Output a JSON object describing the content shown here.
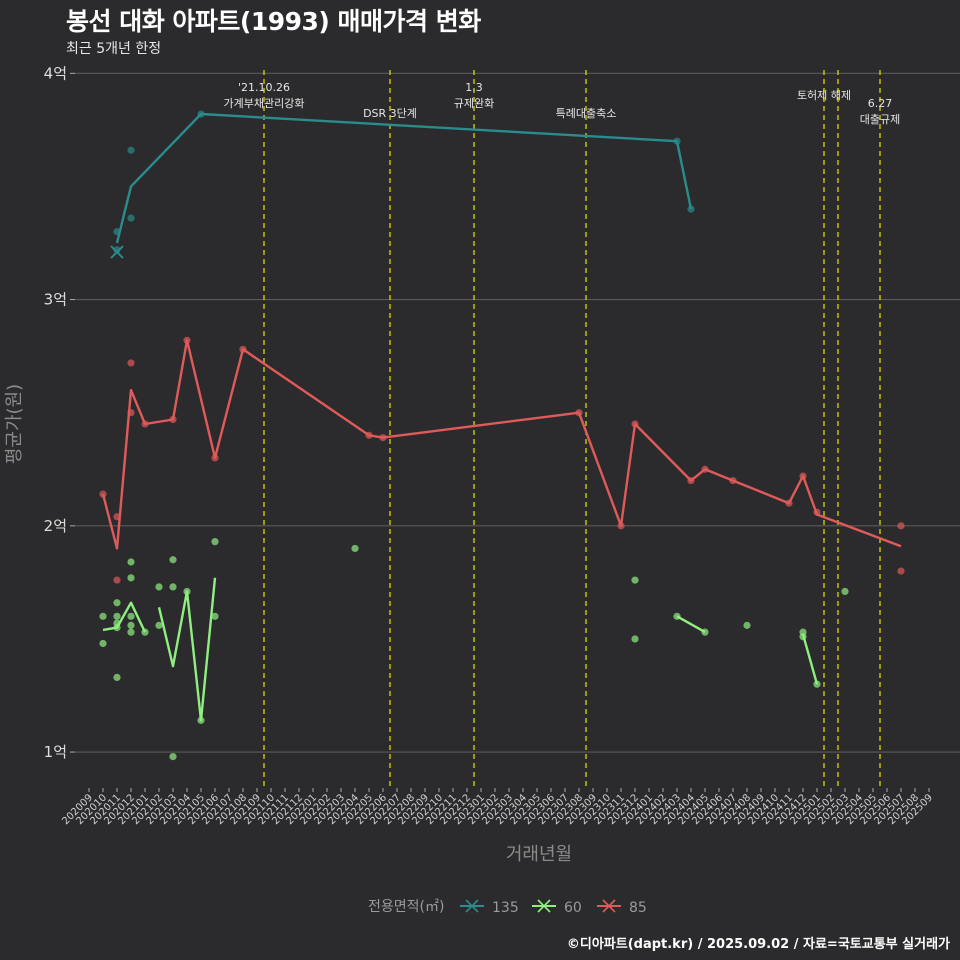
{
  "header": {
    "title": "봉선 대화 아파트(1993) 매매가격 변화",
    "subtitle": "최근 5개년 한정"
  },
  "caption": "©디아파트(dapt.kr) / 2025.09.02 / 자료=국토교통부 실거래가",
  "colors": {
    "background": "#2b2b2d",
    "grid": "#5a5a5a",
    "event_line": "#e6e600",
    "s135": "#2a8c8c",
    "s60": "#90ee80",
    "s85": "#e05a5a"
  },
  "chart_data": {
    "type": "line",
    "title": "봉선 대화 아파트(1993) 매매가격 변화",
    "subtitle": "최근 5개년 한정",
    "xlabel": "거래년월",
    "ylabel": "평균가(원)",
    "ylim": [
      0.85,
      4.05
    ],
    "y_ticks": [
      {
        "value": 1,
        "label": "1억"
      },
      {
        "value": 2,
        "label": "2억"
      },
      {
        "value": 3,
        "label": "3억"
      },
      {
        "value": 4,
        "label": "4억"
      }
    ],
    "months": [
      "202009",
      "202010",
      "202011",
      "202012",
      "202101",
      "202102",
      "202103",
      "202104",
      "202105",
      "202106",
      "202107",
      "202108",
      "202109",
      "202110",
      "202111",
      "202112",
      "202201",
      "202202",
      "202203",
      "202204",
      "202205",
      "202206",
      "202207",
      "202208",
      "202209",
      "202210",
      "202211",
      "202212",
      "202301",
      "202302",
      "202303",
      "202304",
      "202305",
      "202306",
      "202307",
      "202308",
      "202309",
      "202310",
      "202311",
      "202312",
      "202401",
      "202402",
      "202403",
      "202404",
      "202405",
      "202406",
      "202407",
      "202408",
      "202409",
      "202410",
      "202411",
      "202412",
      "202501",
      "202502",
      "202503",
      "202504",
      "202505",
      "202506",
      "202507",
      "202508",
      "202509"
    ],
    "events": [
      {
        "month_index": 12.5,
        "label": [
          "'21.10.26",
          "가계부채관리강화"
        ],
        "row": 0
      },
      {
        "month_index": 21.5,
        "label": [
          "DSR 3단계"
        ],
        "row": 1
      },
      {
        "month_index": 27.5,
        "label": [
          "1.3",
          "규제완화"
        ],
        "row": 0
      },
      {
        "month_index": 35.5,
        "label": [
          "특례대출축소"
        ],
        "row": 1
      },
      {
        "month_index": 52.5,
        "label": [
          "토허제 해제"
        ],
        "row": 2
      },
      {
        "month_index": 53.5,
        "label": [],
        "row": 2
      },
      {
        "month_index": 56.5,
        "label": [
          "6.27",
          "대출규제"
        ],
        "row": 3
      }
    ],
    "series": [
      {
        "name": "135",
        "color": "#2a8c8c",
        "line": [
          [
            2,
            3.25
          ],
          [
            3,
            3.5
          ],
          [
            8,
            3.82
          ],
          [
            42,
            3.7
          ],
          [
            43,
            3.4
          ]
        ],
        "points": [
          [
            2,
            3.3
          ],
          [
            2,
            3.22
          ],
          [
            3,
            3.66
          ],
          [
            3,
            3.36
          ],
          [
            8,
            3.82
          ],
          [
            42,
            3.7
          ],
          [
            43,
            3.4
          ]
        ],
        "cross": [
          2,
          3.21
        ]
      },
      {
        "name": "60",
        "color": "#90ee80",
        "line_segments": [
          [
            [
              1,
              1.54
            ],
            [
              2,
              1.55
            ],
            [
              3,
              1.66
            ],
            [
              4,
              1.53
            ]
          ],
          [
            [
              5,
              1.64
            ],
            [
              6,
              1.38
            ],
            [
              7,
              1.71
            ],
            [
              8,
              1.14
            ],
            [
              9,
              1.77
            ]
          ],
          [
            [
              42,
              1.6
            ],
            [
              44,
              1.53
            ]
          ],
          [
            [
              51,
              1.52
            ],
            [
              52,
              1.3
            ]
          ]
        ],
        "points": [
          [
            1,
            1.6
          ],
          [
            1,
            1.48
          ],
          [
            2,
            1.66
          ],
          [
            2,
            1.6
          ],
          [
            2,
            1.57
          ],
          [
            2,
            1.55
          ],
          [
            2,
            1.33
          ],
          [
            3,
            1.84
          ],
          [
            3,
            1.77
          ],
          [
            3,
            1.6
          ],
          [
            3,
            1.56
          ],
          [
            3,
            1.53
          ],
          [
            4,
            1.53
          ],
          [
            5,
            1.73
          ],
          [
            5,
            1.56
          ],
          [
            6,
            1.85
          ],
          [
            6,
            1.73
          ],
          [
            6,
            0.98
          ],
          [
            7,
            1.71
          ],
          [
            8,
            1.14
          ],
          [
            9,
            1.93
          ],
          [
            9,
            1.6
          ],
          [
            19,
            1.9
          ],
          [
            39,
            1.76
          ],
          [
            39,
            1.5
          ],
          [
            42,
            1.6
          ],
          [
            44,
            1.53
          ],
          [
            47,
            1.56
          ],
          [
            51,
            1.53
          ],
          [
            51,
            1.51
          ],
          [
            52,
            1.3
          ],
          [
            54,
            1.71
          ]
        ]
      },
      {
        "name": "85",
        "color": "#e05a5a",
        "line": [
          [
            1,
            2.14
          ],
          [
            2,
            1.9
          ],
          [
            3,
            2.6
          ],
          [
            4,
            2.45
          ],
          [
            6,
            2.47
          ],
          [
            7,
            2.82
          ],
          [
            9,
            2.3
          ],
          [
            11,
            2.78
          ],
          [
            20,
            2.4
          ],
          [
            21,
            2.39
          ],
          [
            35,
            2.5
          ],
          [
            38,
            2.0
          ],
          [
            39,
            2.45
          ],
          [
            43,
            2.2
          ],
          [
            44,
            2.25
          ],
          [
            46,
            2.2
          ],
          [
            50,
            2.1
          ],
          [
            51,
            2.22
          ],
          [
            52,
            2.05
          ],
          [
            58,
            1.91
          ]
        ],
        "points": [
          [
            1,
            2.14
          ],
          [
            2,
            2.04
          ],
          [
            2,
            1.76
          ],
          [
            3,
            2.72
          ],
          [
            3,
            2.5
          ],
          [
            4,
            2.45
          ],
          [
            6,
            2.47
          ],
          [
            7,
            2.82
          ],
          [
            9,
            2.3
          ],
          [
            11,
            2.78
          ],
          [
            20,
            2.4
          ],
          [
            21,
            2.39
          ],
          [
            35,
            2.5
          ],
          [
            38,
            2.0
          ],
          [
            39,
            2.45
          ],
          [
            43,
            2.2
          ],
          [
            44,
            2.25
          ],
          [
            46,
            2.2
          ],
          [
            50,
            2.1
          ],
          [
            51,
            2.22
          ],
          [
            52,
            2.06
          ],
          [
            58,
            2.0
          ],
          [
            58,
            1.8
          ]
        ]
      }
    ],
    "legend": {
      "title": "전용면적(㎡)",
      "position": "bottom",
      "entries": [
        "135",
        "60",
        "85"
      ]
    }
  }
}
